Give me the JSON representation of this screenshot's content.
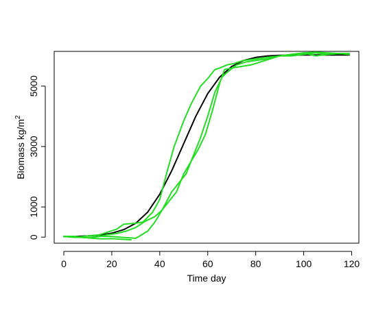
{
  "chart_data": {
    "type": "line",
    "xlabel": "Time day",
    "ylabel_main": "Biomass kg/m",
    "ylabel_sup": "2",
    "xlim": [
      -4,
      123
    ],
    "ylim": [
      -200,
      6150
    ],
    "x_ticks": [
      0,
      20,
      40,
      60,
      80,
      100,
      120
    ],
    "y_ticks": [
      0,
      1000,
      3000,
      5000
    ],
    "grid": false,
    "legend": "none",
    "series": [
      {
        "color": "#000000",
        "width": 2,
        "points": [
          [
            0,
            20
          ],
          [
            5,
            25
          ],
          [
            10,
            40
          ],
          [
            15,
            70
          ],
          [
            20,
            130
          ],
          [
            25,
            250
          ],
          [
            30,
            460
          ],
          [
            35,
            830
          ],
          [
            40,
            1420
          ],
          [
            45,
            2200
          ],
          [
            50,
            3100
          ],
          [
            55,
            4000
          ],
          [
            60,
            4750
          ],
          [
            65,
            5300
          ],
          [
            70,
            5650
          ],
          [
            75,
            5850
          ],
          [
            80,
            5950
          ],
          [
            85,
            6000
          ],
          [
            90,
            6020
          ],
          [
            100,
            6030
          ],
          [
            110,
            6030
          ],
          [
            119,
            6030
          ]
        ]
      },
      {
        "color": "#22dd22",
        "width": 2,
        "points": [
          [
            0,
            20
          ],
          [
            4,
            30
          ],
          [
            8,
            0
          ],
          [
            12,
            -40
          ],
          [
            16,
            -60
          ],
          [
            20,
            -50
          ],
          [
            24,
            -70
          ],
          [
            28,
            -90
          ]
        ]
      },
      {
        "color": "#22dd22",
        "width": 2,
        "points": [
          [
            0,
            20
          ],
          [
            5,
            -10
          ],
          [
            10,
            40
          ],
          [
            15,
            80
          ],
          [
            18,
            160
          ],
          [
            22,
            260
          ],
          [
            25,
            430
          ],
          [
            30,
            460
          ],
          [
            33,
            500
          ],
          [
            37,
            820
          ],
          [
            40,
            1250
          ],
          [
            43,
            2150
          ],
          [
            46,
            3000
          ],
          [
            50,
            3850
          ],
          [
            53,
            4400
          ],
          [
            57,
            5000
          ],
          [
            60,
            5250
          ],
          [
            63,
            5550
          ],
          [
            65,
            5600
          ],
          [
            68,
            5700
          ],
          [
            71,
            5750
          ],
          [
            75,
            5850
          ],
          [
            80,
            5900
          ],
          [
            85,
            5950
          ],
          [
            90,
            6000
          ],
          [
            95,
            6050
          ],
          [
            100,
            6100
          ],
          [
            105,
            6000
          ],
          [
            110,
            6050
          ],
          [
            115,
            6080
          ],
          [
            119,
            6080
          ]
        ]
      },
      {
        "color": "#22dd22",
        "width": 2,
        "points": [
          [
            0,
            20
          ],
          [
            5,
            0
          ],
          [
            10,
            -20
          ],
          [
            15,
            20
          ],
          [
            18,
            80
          ],
          [
            22,
            120
          ],
          [
            26,
            200
          ],
          [
            30,
            320
          ],
          [
            34,
            530
          ],
          [
            38,
            680
          ],
          [
            41,
            900
          ],
          [
            45,
            1500
          ],
          [
            48,
            1800
          ],
          [
            51,
            2100
          ],
          [
            54,
            2700
          ],
          [
            57,
            3300
          ],
          [
            60,
            4000
          ],
          [
            63,
            4800
          ],
          [
            66,
            5300
          ],
          [
            68,
            5450
          ],
          [
            72,
            5700
          ],
          [
            76,
            5800
          ],
          [
            80,
            5850
          ],
          [
            85,
            5900
          ],
          [
            90,
            6000
          ],
          [
            95,
            6000
          ],
          [
            100,
            6050
          ],
          [
            105,
            6100
          ],
          [
            110,
            6050
          ],
          [
            115,
            6080
          ],
          [
            119,
            6050
          ]
        ]
      },
      {
        "color": "#22dd22",
        "width": 2,
        "points": [
          [
            0,
            30
          ],
          [
            5,
            10
          ],
          [
            10,
            -20
          ],
          [
            15,
            30
          ],
          [
            20,
            20
          ],
          [
            25,
            -10
          ],
          [
            30,
            -40
          ],
          [
            35,
            200
          ],
          [
            38,
            500
          ],
          [
            41,
            900
          ],
          [
            44,
            1200
          ],
          [
            47,
            1500
          ],
          [
            50,
            2100
          ],
          [
            53,
            2500
          ],
          [
            56,
            2900
          ],
          [
            59,
            3400
          ],
          [
            62,
            4200
          ],
          [
            65,
            5100
          ],
          [
            67,
            5550
          ],
          [
            70,
            5600
          ],
          [
            74,
            5650
          ],
          [
            78,
            5700
          ],
          [
            82,
            5800
          ],
          [
            86,
            5900
          ],
          [
            90,
            6000
          ],
          [
            95,
            6050
          ],
          [
            100,
            6100
          ],
          [
            105,
            6120
          ],
          [
            110,
            6100
          ],
          [
            115,
            6080
          ],
          [
            119,
            6050
          ]
        ]
      }
    ]
  }
}
